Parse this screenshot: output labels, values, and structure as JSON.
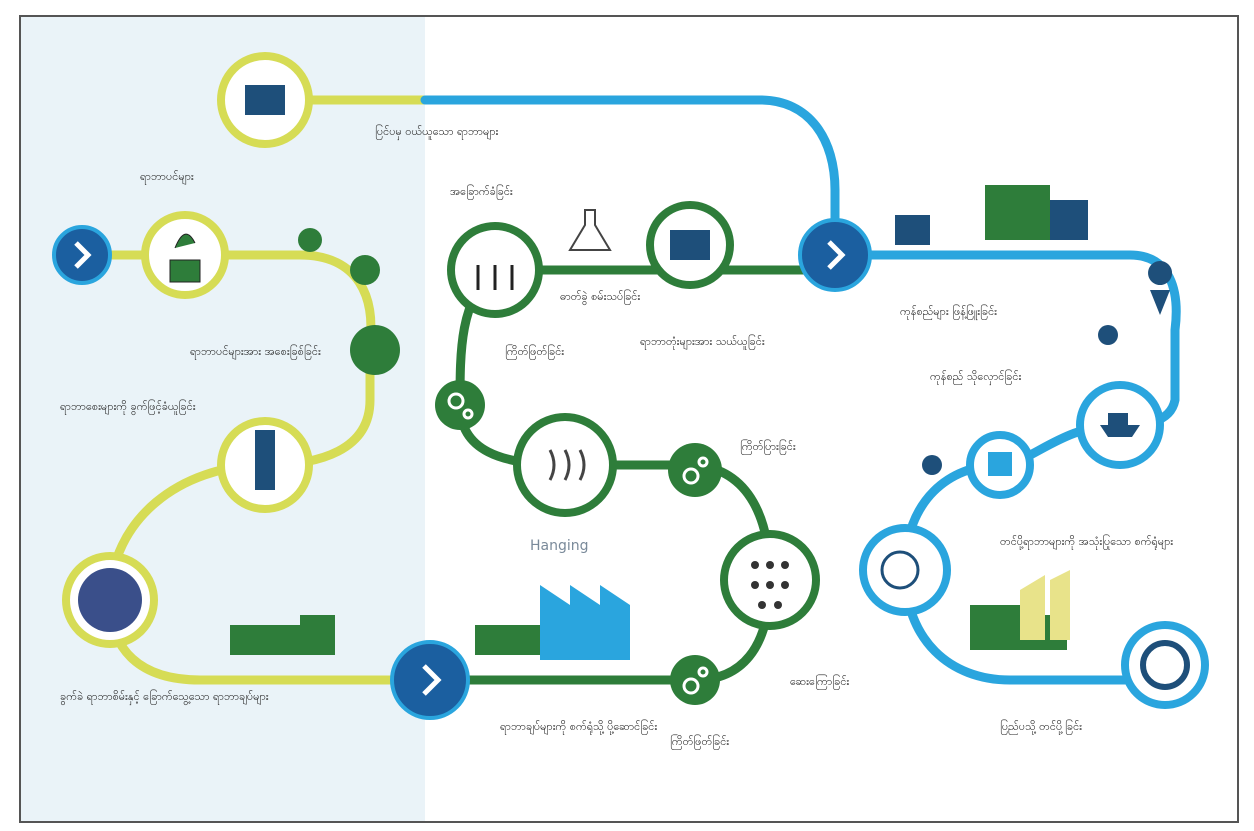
{
  "labels": {
    "purchased": "ပြင်ပမှ ဝယ်ယူသော ရာဘာများ",
    "trees": "ရာဘာပင်များ",
    "tapping": "ရာဘာပင်များအား အစေးခြစ်ခြင်း",
    "collecting": "ရာဘာစေးများကို ခွက်ဖြင့်ခံယူခြင်း",
    "cuplumps": "ခွက်ခဲ ရာဘာစိမ်းနှင့် ခြောက်သွေ့သော ရာဘာချပ်များ",
    "transport_factory": "ရာဘာချပ်များကို စက်ရုံသို့ ပို့ဆောင်ခြင်း",
    "cutting_bottom": "ကြိတ်ဖြတ်ခြင်း",
    "washing": "ဆေးကြောခြင်း",
    "sheeting": "ကြိတ်ပြားခြင်း",
    "hanging": "Hanging",
    "cutting_left": "ကြိတ်ဖြတ်ခြင်း",
    "drying": "အခြောက်ခံခြင်း",
    "testing": "ဓာတ်ခွဲ စမ်းသပ်ခြင်း",
    "bales": "ရာဘာတုံးများအား သယ်ယူခြင်း",
    "distribution": "ကုန်စည်များ ဖြန့်ဖြူးခြင်း",
    "storage": "ကုန်စည် သိုလှောင်ခြင်း",
    "factories": "တင်ပို့ရာဘာများကို အသုံးပြုသော စက်ရုံများ",
    "export": "ပြည်ပသို့ တင်ပို့ခြင်း"
  }
}
